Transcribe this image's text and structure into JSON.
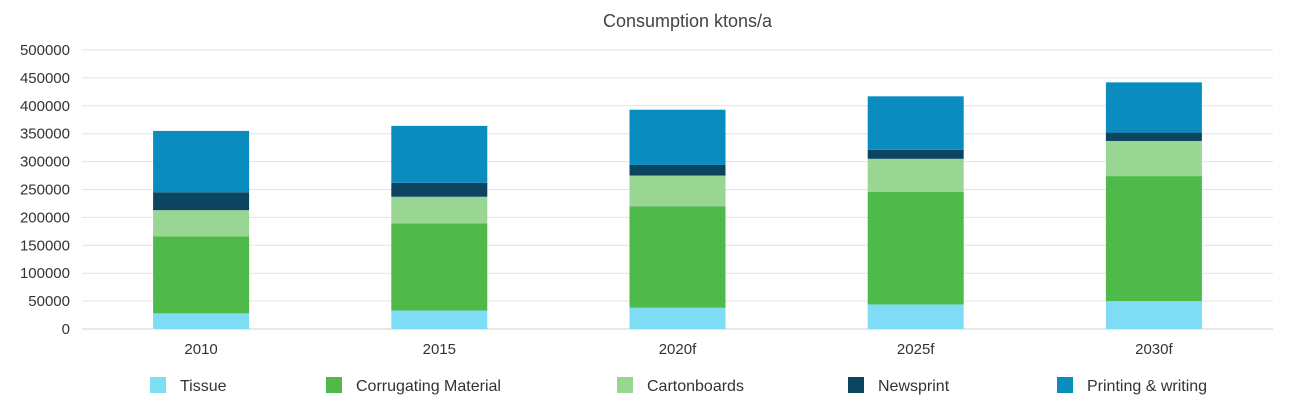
{
  "chart_data": {
    "type": "bar",
    "stacked": true,
    "title": "Consumption ktons/a",
    "categories": [
      "2010",
      "2015",
      "2020f",
      "2025f",
      "2030f"
    ],
    "series": [
      {
        "name": "Tissue",
        "color": "#7fdcf5",
        "values": [
          28000,
          33000,
          38000,
          44000,
          50000
        ]
      },
      {
        "name": "Corrugating Material",
        "color": "#4fba4a",
        "values": [
          138000,
          156000,
          182000,
          202000,
          224000
        ]
      },
      {
        "name": "Cartonboards",
        "color": "#99d694",
        "values": [
          47000,
          48000,
          55000,
          59000,
          63000
        ]
      },
      {
        "name": "Newsprint",
        "color": "#0c4560",
        "values": [
          32000,
          25000,
          19000,
          16000,
          15000
        ]
      },
      {
        "name": "Printing & writing",
        "color": "#0b8cbe",
        "values": [
          110000,
          102000,
          99000,
          96000,
          90000
        ]
      }
    ],
    "ylim": [
      0,
      500000
    ],
    "yticks": [
      0,
      50000,
      100000,
      150000,
      200000,
      250000,
      300000,
      350000,
      400000,
      450000,
      500000
    ],
    "grid": true,
    "legend_position": "bottom"
  }
}
